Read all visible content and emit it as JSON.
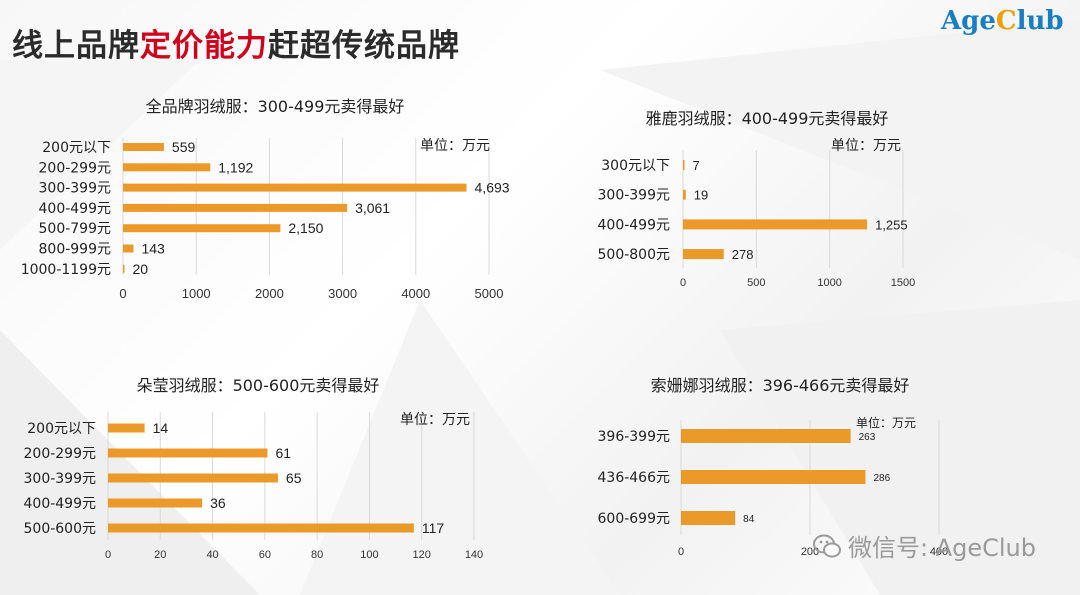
{
  "header": {
    "title_part1": "线上品牌",
    "title_highlight": "定价能力",
    "title_part2": "赶超传统品牌",
    "logo_part1": "Age",
    "logo_part2": "C",
    "logo_part3": "lub"
  },
  "watermark": {
    "text": "微信号: AgeClub"
  },
  "colors": {
    "bar": "#EB9A2A",
    "grid": "#D9D9D9",
    "text": "#222222",
    "title_highlight": "#D0021B"
  },
  "chart_data": [
    {
      "type": "bar",
      "orientation": "horizontal",
      "title": "全品牌羽绒服：300-499元卖得最好",
      "unit": "单位：万元",
      "categories": [
        "200元以下",
        "200-299元",
        "300-399元",
        "400-499元",
        "500-799元",
        "800-999元",
        "1000-1199元"
      ],
      "values": [
        559,
        1192,
        4693,
        3061,
        2150,
        143,
        20
      ],
      "value_labels": [
        "559",
        "1,192",
        "4,693",
        "3,061",
        "2,150",
        "143",
        "20"
      ],
      "xlim": [
        0,
        5000
      ],
      "xticks": [
        0,
        1000,
        2000,
        3000,
        4000,
        5000
      ],
      "grid": true
    },
    {
      "type": "bar",
      "orientation": "horizontal",
      "title": "雅鹿羽绒服：400-499元卖得最好",
      "unit": "单位：万元",
      "categories": [
        "300元以下",
        "300-399元",
        "400-499元",
        "500-800元"
      ],
      "values": [
        7,
        19,
        1255,
        278
      ],
      "value_labels": [
        "7",
        "19",
        "1,255",
        "278"
      ],
      "xlim": [
        0,
        1500
      ],
      "xticks": [
        0,
        500,
        1000,
        1500
      ],
      "grid": true
    },
    {
      "type": "bar",
      "orientation": "horizontal",
      "title": "朵莹羽绒服：500-600元卖得最好",
      "unit": "单位：万元",
      "categories": [
        "200元以下",
        "200-299元",
        "300-399元",
        "400-499元",
        "500-600元"
      ],
      "values": [
        14,
        61,
        65,
        36,
        117
      ],
      "value_labels": [
        "14",
        "61",
        "65",
        "36",
        "117"
      ],
      "xlim": [
        0,
        140
      ],
      "xticks": [
        0,
        20,
        40,
        60,
        80,
        100,
        120,
        140
      ],
      "grid": true
    },
    {
      "type": "bar",
      "orientation": "horizontal",
      "title": "索姗娜羽绒服：396-466元卖得最好",
      "unit": "单位：万元",
      "categories": [
        "396-399元",
        "436-466元",
        "600-699元"
      ],
      "values": [
        263,
        286,
        84
      ],
      "value_labels": [
        "263",
        "286",
        "84"
      ],
      "xlim": [
        0,
        400
      ],
      "xticks": [
        0,
        200,
        400
      ],
      "grid": true
    }
  ]
}
